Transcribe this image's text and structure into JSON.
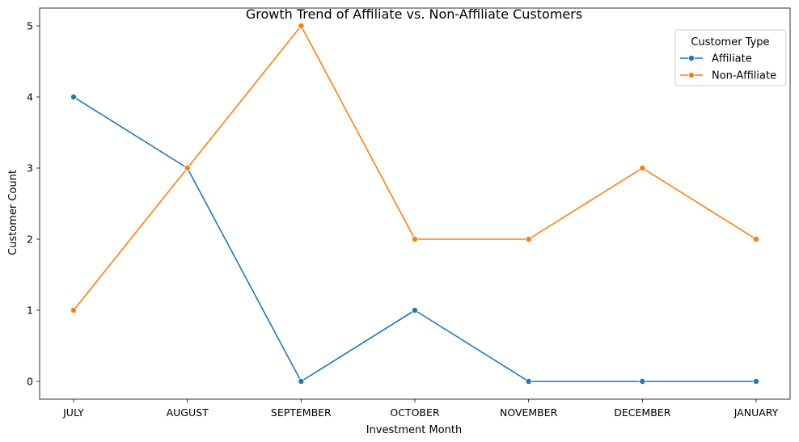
{
  "chart_data": {
    "type": "line",
    "title": "Growth Trend of Affiliate vs. Non-Affiliate Customers",
    "xlabel": "Investment Month",
    "ylabel": "Customer Count",
    "categories": [
      "JULY",
      "AUGUST",
      "SEPTEMBER",
      "OCTOBER",
      "NOVEMBER",
      "DECEMBER",
      "JANUARY"
    ],
    "ylim": [
      -0.25,
      5.25
    ],
    "yticks": [
      0,
      1,
      2,
      3,
      4,
      5
    ],
    "grid": false,
    "series": [
      {
        "name": "Affiliate",
        "color": "#1f77b4",
        "values": [
          4,
          3,
          0,
          1,
          0,
          0,
          0
        ]
      },
      {
        "name": "Non-Affiliate",
        "color": "#ff7f0e",
        "values": [
          1,
          3,
          5,
          2,
          2,
          3,
          2
        ]
      }
    ],
    "legend": {
      "title": "Customer Type",
      "placement": "top-right"
    }
  }
}
